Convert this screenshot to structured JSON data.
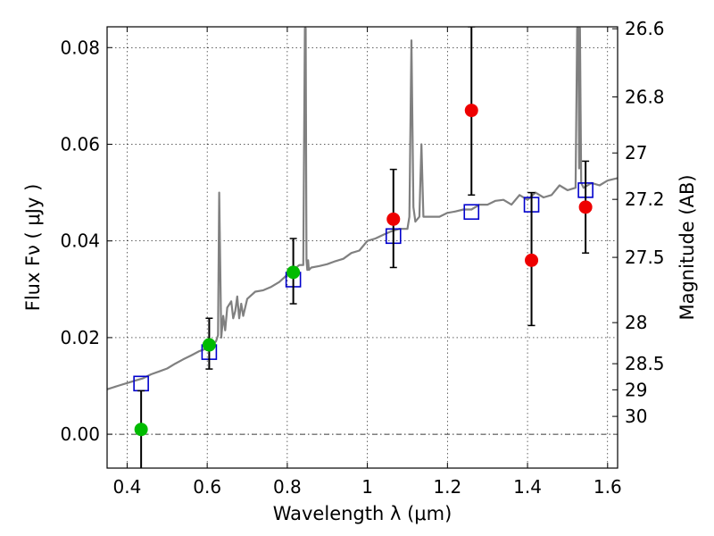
{
  "chart_data": {
    "type": "scatter",
    "xlabel": "Wavelength  λ (μm)",
    "ylabel": "Flux  Fν  ( μJy )",
    "ylabel_right": "Magnitude (AB)",
    "xlim": [
      0.35,
      1.625
    ],
    "ylim": [
      -0.007,
      0.0843
    ],
    "grid": true,
    "x_ticks": [
      0.4,
      0.6,
      0.8,
      1.0,
      1.2,
      1.4,
      1.6
    ],
    "x_tick_labels": [
      "0.4",
      "0.6",
      "0.8",
      "1",
      "1.2",
      "1.4",
      "1.6"
    ],
    "y_ticks": [
      0.0,
      0.02,
      0.04,
      0.06,
      0.08
    ],
    "y_tick_labels": [
      "0.00",
      "0.02",
      "0.04",
      "0.06",
      "0.08"
    ],
    "right_ticks": [
      {
        "flux": 0.0839,
        "label": "26.6"
      },
      {
        "flux": 0.0698,
        "label": "26.8"
      },
      {
        "flux": 0.0582,
        "label": "27"
      },
      {
        "flux": 0.0486,
        "label": "27.2"
      },
      {
        "flux": 0.0366,
        "label": "27.5"
      },
      {
        "flux": 0.0231,
        "label": "28"
      },
      {
        "flux": 0.0146,
        "label": "28.5"
      },
      {
        "flux": 0.0092,
        "label": "29"
      },
      {
        "flux": 0.0037,
        "label": "30"
      }
    ],
    "colors": {
      "template": "#808080",
      "model": "#0000cc",
      "green": "#00bb00",
      "red": "#ee0000",
      "errorbar": "#000000"
    },
    "series": [
      {
        "kind": "line",
        "x": [
          0.35,
          0.38,
          0.4,
          0.42,
          0.44,
          0.46,
          0.48,
          0.5,
          0.52,
          0.54,
          0.56,
          0.58,
          0.6,
          0.615,
          0.622,
          0.627,
          0.63,
          0.635,
          0.64,
          0.645,
          0.65,
          0.66,
          0.665,
          0.67,
          0.675,
          0.68,
          0.685,
          0.69,
          0.7,
          0.72,
          0.74,
          0.76,
          0.78,
          0.8,
          0.83,
          0.84,
          0.844,
          0.846,
          0.848,
          0.85,
          0.852,
          0.854,
          0.86,
          0.88,
          0.9,
          0.92,
          0.94,
          0.96,
          0.98,
          1.0,
          1.02,
          1.04,
          1.06,
          1.08,
          1.1,
          1.105,
          1.11,
          1.115,
          1.12,
          1.13,
          1.135,
          1.14,
          1.16,
          1.18,
          1.2,
          1.22,
          1.24,
          1.26,
          1.28,
          1.3,
          1.32,
          1.34,
          1.36,
          1.38,
          1.4,
          1.42,
          1.44,
          1.46,
          1.48,
          1.5,
          1.52,
          1.524,
          1.527,
          1.529,
          1.531,
          1.534,
          1.54,
          1.56,
          1.58,
          1.6,
          1.625
        ],
        "y": [
          0.0093,
          0.0101,
          0.0106,
          0.0111,
          0.0116,
          0.0124,
          0.013,
          0.0136,
          0.0146,
          0.0155,
          0.0163,
          0.0172,
          0.0178,
          0.0187,
          0.0192,
          0.0205,
          0.05,
          0.02,
          0.0245,
          0.0215,
          0.0262,
          0.0275,
          0.024,
          0.0255,
          0.0285,
          0.024,
          0.027,
          0.0245,
          0.028,
          0.0295,
          0.0298,
          0.0305,
          0.0315,
          0.033,
          0.035,
          0.035,
          0.084,
          0.084,
          0.036,
          0.034,
          0.036,
          0.034,
          0.0345,
          0.0348,
          0.0352,
          0.0358,
          0.0363,
          0.0375,
          0.038,
          0.04,
          0.0405,
          0.0413,
          0.042,
          0.0425,
          0.0425,
          0.045,
          0.0815,
          0.047,
          0.044,
          0.045,
          0.06,
          0.045,
          0.045,
          0.045,
          0.0458,
          0.0461,
          0.0465,
          0.0465,
          0.0475,
          0.0475,
          0.0483,
          0.0485,
          0.0475,
          0.0495,
          0.0485,
          0.05,
          0.049,
          0.0495,
          0.0515,
          0.0505,
          0.051,
          0.084,
          0.084,
          0.055,
          0.084,
          0.052,
          0.051,
          0.052,
          0.0515,
          0.0525,
          0.053
        ]
      },
      {
        "kind": "squares",
        "x": [
          0.435,
          0.605,
          0.815,
          1.065,
          1.26,
          1.41,
          1.545
        ],
        "y": [
          0.0105,
          0.017,
          0.032,
          0.041,
          0.046,
          0.0475,
          0.0505
        ]
      },
      {
        "kind": "points-green",
        "x": [
          0.435,
          0.605,
          0.815
        ],
        "y": [
          0.001,
          0.0185,
          0.0335
        ],
        "err_lo": [
          -0.009,
          0.0135,
          0.027
        ],
        "err_hi": [
          0.009,
          0.024,
          0.0405
        ]
      },
      {
        "kind": "points-red",
        "x": [
          1.065,
          1.26,
          1.41,
          1.545
        ],
        "y": [
          0.0445,
          0.067,
          0.036,
          0.047
        ],
        "err_lo": [
          0.0345,
          0.0495,
          0.0225,
          0.0375
        ],
        "err_hi": [
          0.0548,
          0.0843,
          0.05,
          0.0565
        ]
      }
    ]
  }
}
